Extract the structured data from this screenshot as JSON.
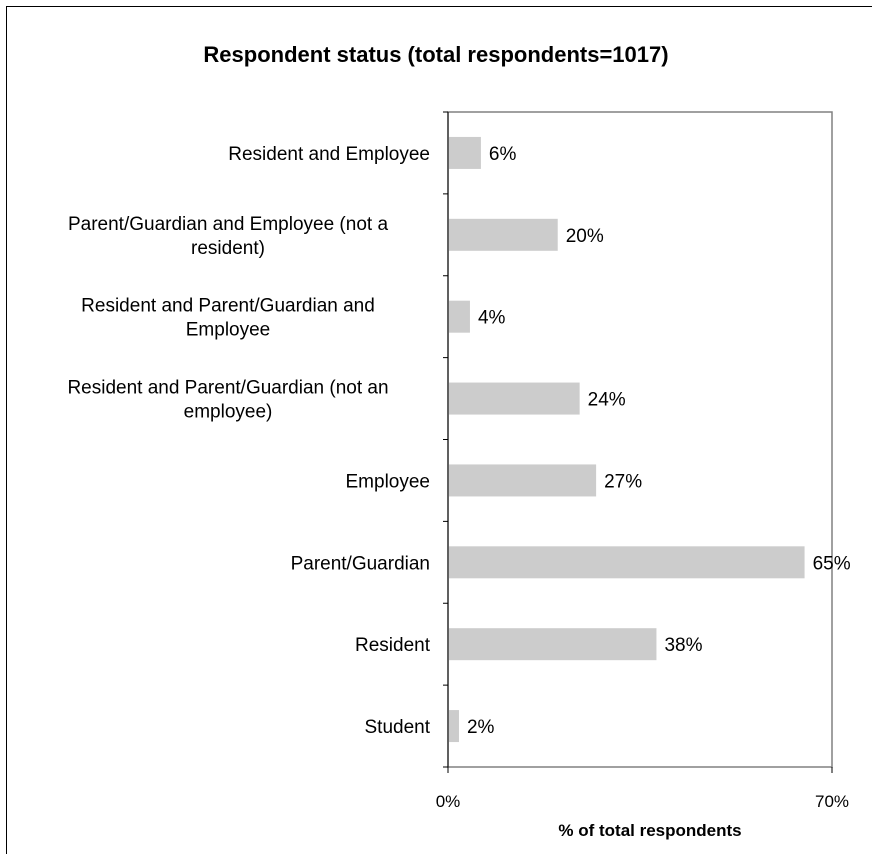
{
  "chart_data": {
    "type": "bar",
    "orientation": "horizontal",
    "title": "Respondent status (total respondents=1017)",
    "xlabel": "% of total respondents",
    "ylabel": "",
    "xlim": [
      0,
      70
    ],
    "x_ticks": [
      "0%",
      "70%"
    ],
    "grid": false,
    "bar_color": "#cccccc",
    "categories": [
      [
        "Resident and Employee"
      ],
      [
        "Parent/Guardian and Employee (not a",
        "resident)"
      ],
      [
        "Resident and Parent/Guardian and",
        "Employee"
      ],
      [
        "Resident and Parent/Guardian (not an",
        "employee)"
      ],
      [
        "Employee"
      ],
      [
        "Parent/Guardian"
      ],
      [
        "Resident"
      ],
      [
        "Student"
      ]
    ],
    "values": [
      6,
      20,
      4,
      24,
      27,
      65,
      38,
      2
    ],
    "value_labels": [
      "6%",
      "20%",
      "4%",
      "24%",
      "27%",
      "65%",
      "38%",
      "2%"
    ]
  }
}
